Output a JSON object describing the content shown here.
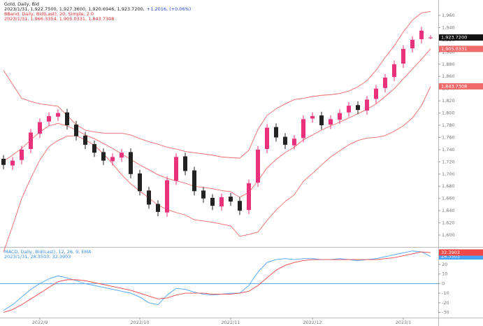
{
  "chart_data": [
    {
      "type": "candlestick",
      "title": "Gold, Daily, Bid",
      "info": "2023/1/31, 1,922.7500, 1,927.3600, 1,920.6946, 1,923.7200,",
      "change": "+1.2016, (+0.06%)",
      "indicator": "BBand, Daily, Bid(Last), 20, Simple, 2.0",
      "indicator_info": "2023/1/31, 1,966.3354, 1,905.0331, 1,843.7308",
      "open": [
        1725,
        1714,
        1723,
        1741,
        1766,
        1786,
        1794,
        1801,
        1781,
        1763,
        1749,
        1736,
        1721,
        1727,
        1736,
        1701,
        1673,
        1651,
        1637,
        1689,
        1729,
        1706,
        1673,
        1661,
        1647,
        1663,
        1656,
        1641,
        1686,
        1741,
        1777,
        1761,
        1747,
        1759,
        1791,
        1796,
        1781,
        1789,
        1801,
        1813,
        1804,
        1823,
        1841,
        1859,
        1881,
        1906,
        1921,
        1922.75
      ],
      "high": [
        1731,
        1728,
        1746,
        1774,
        1791,
        1801,
        1806,
        1807,
        1787,
        1769,
        1755,
        1742,
        1734,
        1741,
        1742,
        1707,
        1679,
        1657,
        1696,
        1734,
        1735,
        1712,
        1679,
        1667,
        1668,
        1669,
        1662,
        1691,
        1746,
        1782,
        1783,
        1767,
        1764,
        1796,
        1801,
        1802,
        1796,
        1806,
        1818,
        1819,
        1828,
        1846,
        1864,
        1886,
        1911,
        1926,
        1941,
        1927.36
      ],
      "low": [
        1708,
        1707,
        1716,
        1734,
        1759,
        1779,
        1787,
        1773,
        1755,
        1741,
        1728,
        1715,
        1714,
        1720,
        1693,
        1665,
        1643,
        1631,
        1630,
        1682,
        1698,
        1665,
        1653,
        1641,
        1640,
        1648,
        1633,
        1634,
        1679,
        1734,
        1753,
        1741,
        1740,
        1752,
        1784,
        1773,
        1774,
        1782,
        1794,
        1798,
        1797,
        1816,
        1834,
        1852,
        1874,
        1899,
        1914,
        1920.6946
      ],
      "close": [
        1715,
        1722,
        1740,
        1768,
        1785,
        1795,
        1800,
        1780,
        1762,
        1748,
        1735,
        1722,
        1728,
        1735,
        1700,
        1672,
        1650,
        1638,
        1690,
        1728,
        1705,
        1672,
        1660,
        1648,
        1662,
        1655,
        1640,
        1685,
        1740,
        1776,
        1760,
        1748,
        1758,
        1790,
        1795,
        1780,
        1790,
        1800,
        1812,
        1805,
        1822,
        1840,
        1858,
        1880,
        1905,
        1920,
        1935,
        1923.72
      ],
      "last_label": "1,923.7200",
      "up_color": "#e8327c",
      "down_color": "#222222",
      "series": [
        {
          "color": "#f06a6a",
          "values": [
            1870,
            1847,
            1824,
            1819,
            1815,
            1813,
            1811,
            1796,
            1781,
            1772,
            1769,
            1767,
            1767,
            1767,
            1764,
            1758,
            1753,
            1749,
            1744,
            1741,
            1737,
            1735,
            1733,
            1731,
            1728,
            1727,
            1726,
            1739,
            1773,
            1796,
            1807,
            1815,
            1822,
            1824,
            1827,
            1829,
            1830,
            1832,
            1836,
            1843,
            1853,
            1870,
            1891,
            1910,
            1933,
            1952,
            1964,
            1966.3354
          ]
        },
        {
          "color": "#f06a6a",
          "last_label": "1,905.0331",
          "values": [
            1721,
            1731,
            1742,
            1756,
            1769,
            1779,
            1783,
            1779,
            1772,
            1764,
            1758,
            1750,
            1742,
            1733,
            1724,
            1715,
            1707,
            1699,
            1693,
            1689,
            1685,
            1680,
            1678,
            1676,
            1673,
            1671,
            1662,
            1670,
            1689,
            1710,
            1724,
            1735,
            1744,
            1756,
            1764,
            1772,
            1779,
            1785,
            1792,
            1799,
            1806,
            1815,
            1827,
            1840,
            1856,
            1872,
            1888,
            1905.0331
          ]
        },
        {
          "color": "#f06a6a",
          "last_label": "1,843.7308",
          "values": [
            1572,
            1615,
            1660,
            1693,
            1723,
            1745,
            1755,
            1762,
            1763,
            1756,
            1747,
            1733,
            1717,
            1699,
            1684,
            1672,
            1661,
            1649,
            1642,
            1637,
            1633,
            1625,
            1623,
            1621,
            1618,
            1615,
            1598,
            1601,
            1605,
            1624,
            1641,
            1655,
            1666,
            1688,
            1701,
            1715,
            1728,
            1738,
            1748,
            1755,
            1759,
            1760,
            1763,
            1770,
            1779,
            1792,
            1812,
            1843.7308
          ]
        }
      ],
      "ylim": [
        1584,
        1976
      ],
      "yticks": [
        {
          "value": 1600,
          "label": "1,600"
        },
        {
          "value": 1620,
          "label": "1,620"
        },
        {
          "value": 1640,
          "label": "1,640"
        },
        {
          "value": 1660,
          "label": "1,660"
        },
        {
          "value": 1680,
          "label": "1,680"
        },
        {
          "value": 1700,
          "label": "1,700"
        },
        {
          "value": 1720,
          "label": "1,720"
        },
        {
          "value": 1740,
          "label": "1,740"
        },
        {
          "value": 1760,
          "label": "1,760"
        },
        {
          "value": 1780,
          "label": "1,780"
        },
        {
          "value": 1800,
          "label": "1,800"
        },
        {
          "value": 1820,
          "label": "1,820"
        },
        {
          "value": 1840,
          "label": "1,840"
        },
        {
          "value": 1860,
          "label": "1,860"
        },
        {
          "value": 1880,
          "label": "1,880"
        },
        {
          "value": 1900,
          "label": "1,900"
        },
        {
          "value": 1920,
          "label": "1,920"
        },
        {
          "value": 1940,
          "label": "1,940"
        },
        {
          "value": 1960,
          "label": "1,960"
        }
      ]
    },
    {
      "type": "line",
      "title": "MACD, Daily, Bid(Last), 12, 26, 9, EMA",
      "info": "2023/1/31, 28.3503, 32.3903",
      "categories": [
        null,
        null,
        null,
        null,
        "2022/9",
        null,
        null,
        null,
        null,
        null,
        null,
        null,
        null,
        null,
        null,
        "2022/10",
        null,
        null,
        null,
        null,
        null,
        null,
        null,
        null,
        null,
        "2022/11",
        null,
        null,
        null,
        null,
        null,
        null,
        null,
        null,
        "2022/12",
        null,
        null,
        null,
        null,
        null,
        null,
        null,
        null,
        null,
        "2023/1",
        null,
        null,
        null
      ],
      "series": [
        {
          "color": "#4aa3ff",
          "last_label": "28.3503",
          "values": [
            -28,
            -22,
            -14,
            -6,
            0,
            5,
            8,
            6,
            3,
            0,
            -2,
            -4,
            -6,
            -8,
            -10,
            -14,
            -20,
            -22,
            -12,
            -5,
            -6,
            -9,
            -11,
            -12,
            -11,
            -10,
            -10,
            -2,
            12,
            22,
            25,
            26,
            25,
            26,
            26,
            25,
            25,
            26,
            25,
            24,
            25,
            26,
            28,
            30,
            32,
            34,
            33,
            28.3503
          ]
        },
        {
          "color": "#f04848",
          "last_label": "32.3903",
          "values": [
            -30,
            -27,
            -22,
            -16,
            -10,
            -4,
            2,
            4,
            4,
            3,
            1,
            -1,
            -3,
            -5,
            -7,
            -10,
            -13,
            -16,
            -15,
            -12,
            -10,
            -10,
            -10,
            -11,
            -11,
            -11,
            -10,
            -8,
            -2,
            6,
            14,
            19,
            22,
            24,
            25,
            25,
            25,
            25,
            25,
            25,
            25,
            25,
            26,
            27,
            29,
            31,
            33,
            32.3903
          ]
        }
      ],
      "zero_line_color": "#3a8ee6",
      "ylim": [
        -34,
        36
      ],
      "yticks": [
        -30,
        -20,
        -10,
        0,
        10,
        20,
        30
      ]
    }
  ]
}
